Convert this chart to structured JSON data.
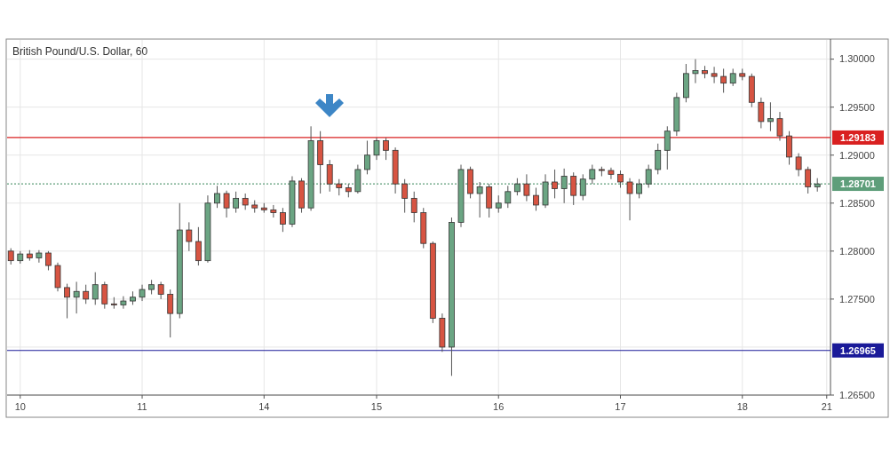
{
  "chart_data": {
    "type": "candlestick",
    "title": "British Pound/U.S. Dollar, 60",
    "categories": [
      null,
      "10",
      null,
      null,
      null,
      null,
      null,
      null,
      null,
      null,
      null,
      null,
      null,
      null,
      "11",
      null,
      null,
      null,
      null,
      null,
      null,
      null,
      null,
      null,
      null,
      null,
      null,
      "14",
      null,
      null,
      null,
      null,
      null,
      null,
      null,
      null,
      null,
      null,
      null,
      "15",
      null,
      null,
      null,
      null,
      null,
      null,
      null,
      null,
      null,
      null,
      null,
      null,
      "16",
      null,
      null,
      null,
      null,
      null,
      null,
      null,
      null,
      null,
      null,
      null,
      null,
      "17",
      null,
      null,
      null,
      null,
      null,
      null,
      null,
      null,
      null,
      null,
      null,
      null,
      "18",
      null,
      null,
      null,
      null,
      null,
      null,
      null,
      null,
      "21"
    ],
    "ohlc": [
      [
        1.28,
        1.2803,
        1.2786,
        1.279
      ],
      [
        1.279,
        1.28,
        1.2787,
        1.2797
      ],
      [
        1.2797,
        1.2801,
        1.279,
        1.2793
      ],
      [
        1.2793,
        1.2801,
        1.2788,
        1.2798
      ],
      [
        1.2798,
        1.28,
        1.278,
        1.2785
      ],
      [
        1.2785,
        1.2788,
        1.2758,
        1.2762
      ],
      [
        1.2762,
        1.2766,
        1.273,
        1.2752
      ],
      [
        1.2752,
        1.2768,
        1.2735,
        1.2758
      ],
      [
        1.2758,
        1.2765,
        1.2745,
        1.275
      ],
      [
        1.275,
        1.2778,
        1.2744,
        1.2765
      ],
      [
        1.2765,
        1.2768,
        1.274,
        1.2745
      ],
      [
        1.2745,
        1.2752,
        1.274,
        1.2744
      ],
      [
        1.2744,
        1.2753,
        1.274,
        1.2748
      ],
      [
        1.2748,
        1.2758,
        1.2744,
        1.2752
      ],
      [
        1.2752,
        1.2765,
        1.2748,
        1.276
      ],
      [
        1.276,
        1.277,
        1.2755,
        1.2765
      ],
      [
        1.2765,
        1.2768,
        1.275,
        1.2755
      ],
      [
        1.2755,
        1.276,
        1.271,
        1.2735
      ],
      [
        1.2735,
        1.285,
        1.273,
        1.2822
      ],
      [
        1.2822,
        1.283,
        1.28,
        1.281
      ],
      [
        1.281,
        1.2825,
        1.2785,
        1.279
      ],
      [
        1.279,
        1.2858,
        1.2788,
        1.285
      ],
      [
        1.285,
        1.2868,
        1.2845,
        1.286
      ],
      [
        1.286,
        1.2863,
        1.2835,
        1.2845
      ],
      [
        1.2845,
        1.2862,
        1.284,
        1.2855
      ],
      [
        1.2855,
        1.286,
        1.2843,
        1.2848
      ],
      [
        1.2848,
        1.2853,
        1.284,
        1.2845
      ],
      [
        1.2845,
        1.285,
        1.284,
        1.2843
      ],
      [
        1.2843,
        1.2848,
        1.2835,
        1.284
      ],
      [
        1.284,
        1.2845,
        1.282,
        1.2828
      ],
      [
        1.2828,
        1.2878,
        1.2825,
        1.2873
      ],
      [
        1.2873,
        1.2876,
        1.284,
        1.2845
      ],
      [
        1.2845,
        1.293,
        1.2842,
        1.2915
      ],
      [
        1.2915,
        1.2925,
        1.286,
        1.289
      ],
      [
        1.289,
        1.2895,
        1.2862,
        1.287
      ],
      [
        1.287,
        1.2875,
        1.2858,
        1.2866
      ],
      [
        1.2866,
        1.287,
        1.2856,
        1.2862
      ],
      [
        1.2862,
        1.289,
        1.286,
        1.2885
      ],
      [
        1.2885,
        1.2915,
        1.288,
        1.29
      ],
      [
        1.29,
        1.2918,
        1.2895,
        1.2915
      ],
      [
        1.2915,
        1.2918,
        1.2895,
        1.2905
      ],
      [
        1.2905,
        1.2908,
        1.286,
        1.287
      ],
      [
        1.287,
        1.2875,
        1.284,
        1.2855
      ],
      [
        1.2855,
        1.2862,
        1.283,
        1.284
      ],
      [
        1.284,
        1.2845,
        1.2803,
        1.2808
      ],
      [
        1.2808,
        1.281,
        1.2725,
        1.273
      ],
      [
        1.273,
        1.2735,
        1.2695,
        1.27
      ],
      [
        1.27,
        1.2835,
        1.267,
        1.283
      ],
      [
        1.283,
        1.289,
        1.2825,
        1.2885
      ],
      [
        1.2885,
        1.2888,
        1.2855,
        1.286
      ],
      [
        1.286,
        1.2872,
        1.2835,
        1.2867
      ],
      [
        1.2867,
        1.287,
        1.2835,
        1.2845
      ],
      [
        1.2845,
        1.2858,
        1.284,
        1.285
      ],
      [
        1.285,
        1.2868,
        1.2845,
        1.2862
      ],
      [
        1.2862,
        1.2876,
        1.2858,
        1.287
      ],
      [
        1.287,
        1.288,
        1.2852,
        1.2858
      ],
      [
        1.2858,
        1.2866,
        1.2842,
        1.2848
      ],
      [
        1.2848,
        1.288,
        1.2845,
        1.2872
      ],
      [
        1.2872,
        1.2885,
        1.2855,
        1.2865
      ],
      [
        1.2865,
        1.2886,
        1.285,
        1.2878
      ],
      [
        1.2878,
        1.2882,
        1.2848,
        1.2858
      ],
      [
        1.2858,
        1.288,
        1.2853,
        1.2875
      ],
      [
        1.2875,
        1.289,
        1.287,
        1.2885
      ],
      [
        1.2885,
        1.2888,
        1.2878,
        1.2884
      ],
      [
        1.2884,
        1.2887,
        1.2875,
        1.288
      ],
      [
        1.288,
        1.2884,
        1.2866,
        1.2872
      ],
      [
        1.2872,
        1.2876,
        1.2832,
        1.286
      ],
      [
        1.286,
        1.2875,
        1.2855,
        1.287
      ],
      [
        1.287,
        1.289,
        1.2866,
        1.2885
      ],
      [
        1.2885,
        1.2912,
        1.288,
        1.2905
      ],
      [
        1.2905,
        1.293,
        1.2885,
        1.2925
      ],
      [
        1.2925,
        1.2965,
        1.292,
        1.296
      ],
      [
        1.296,
        1.2995,
        1.2955,
        1.2985
      ],
      [
        1.2985,
        1.3,
        1.2975,
        1.2988
      ],
      [
        1.2988,
        1.2993,
        1.298,
        1.2985
      ],
      [
        1.2985,
        1.2992,
        1.2975,
        1.2982
      ],
      [
        1.2982,
        1.299,
        1.2965,
        1.2975
      ],
      [
        1.2975,
        1.299,
        1.2972,
        1.2985
      ],
      [
        1.2985,
        1.299,
        1.2978,
        1.2982
      ],
      [
        1.2982,
        1.2985,
        1.295,
        1.2955
      ],
      [
        1.2955,
        1.296,
        1.2928,
        1.2935
      ],
      [
        1.2935,
        1.2955,
        1.2925,
        1.2938
      ],
      [
        1.2938,
        1.2945,
        1.2915,
        1.292
      ],
      [
        1.292,
        1.2925,
        1.289,
        1.2898
      ],
      [
        1.2898,
        1.2902,
        1.2878,
        1.2885
      ],
      [
        1.2885,
        1.2888,
        1.286,
        1.2867
      ],
      [
        1.2867,
        1.2876,
        1.2862,
        1.287
      ],
      null
    ],
    "colors": [
      "#d75442",
      "#6ba583",
      "#d75442",
      "#6ba583",
      "#d75442",
      "#d75442",
      "#d75442",
      "#6ba583",
      "#d75442",
      "#6ba583",
      "#d75442",
      "#d75442",
      "#6ba583",
      "#6ba583",
      "#6ba583",
      "#6ba583",
      "#d75442",
      "#d75442",
      "#6ba583",
      "#d75442",
      "#d75442",
      "#6ba583",
      "#6ba583",
      "#d75442",
      "#6ba583",
      "#d75442",
      "#d75442",
      "#d75442",
      "#d75442",
      "#d75442",
      "#6ba583",
      "#d75442",
      "#6ba583",
      "#d75442",
      "#d75442",
      "#d75442",
      "#d75442",
      "#6ba583",
      "#6ba583",
      "#6ba583",
      "#d75442",
      "#d75442",
      "#d75442",
      "#d75442",
      "#d75442",
      "#d75442",
      "#d75442",
      "#6ba583",
      "#6ba583",
      "#d75442",
      "#6ba583",
      "#d75442",
      "#6ba583",
      "#6ba583",
      "#6ba583",
      "#d75442",
      "#d75442",
      "#6ba583",
      "#d75442",
      "#6ba583",
      "#d75442",
      "#6ba583",
      "#6ba583",
      "#d75442",
      "#d75442",
      "#d75442",
      "#d75442",
      "#6ba583",
      "#6ba583",
      "#6ba583",
      "#6ba583",
      "#6ba583",
      "#6ba583",
      "#6ba583",
      "#d75442",
      "#d75442",
      "#d75442",
      "#6ba583",
      "#d75442",
      "#d75442",
      "#d75442",
      "#6ba583",
      "#d75442",
      "#d75442",
      "#d75442",
      "#d75442",
      "#6ba583",
      null
    ],
    "ylim": [
      1.265,
      1.302
    ],
    "yticks": [
      {
        "value": 1.265,
        "label": "1.26500"
      },
      {
        "value": 1.27,
        "label": null
      },
      {
        "value": 1.275,
        "label": "1.27500"
      },
      {
        "value": 1.28,
        "label": "1.28000"
      },
      {
        "value": 1.285,
        "label": "1.28500"
      },
      {
        "value": 1.29,
        "label": "1.29000"
      },
      {
        "value": 1.295,
        "label": "1.29500"
      },
      {
        "value": 1.3,
        "label": "1.30000"
      }
    ],
    "ref_lines": [
      {
        "axis": "y",
        "value": 1.29183,
        "label": "1.29183",
        "color": "#d92020",
        "line_style": "solid"
      },
      {
        "axis": "y",
        "value": 1.26965,
        "label": "1.26965",
        "color": "#1a1a99",
        "line_style": "solid"
      },
      {
        "axis": "y",
        "value": 1.28701,
        "label": "1.28701",
        "color": "#5e9e7a",
        "line_style": "dotted"
      }
    ],
    "grid": true
  }
}
